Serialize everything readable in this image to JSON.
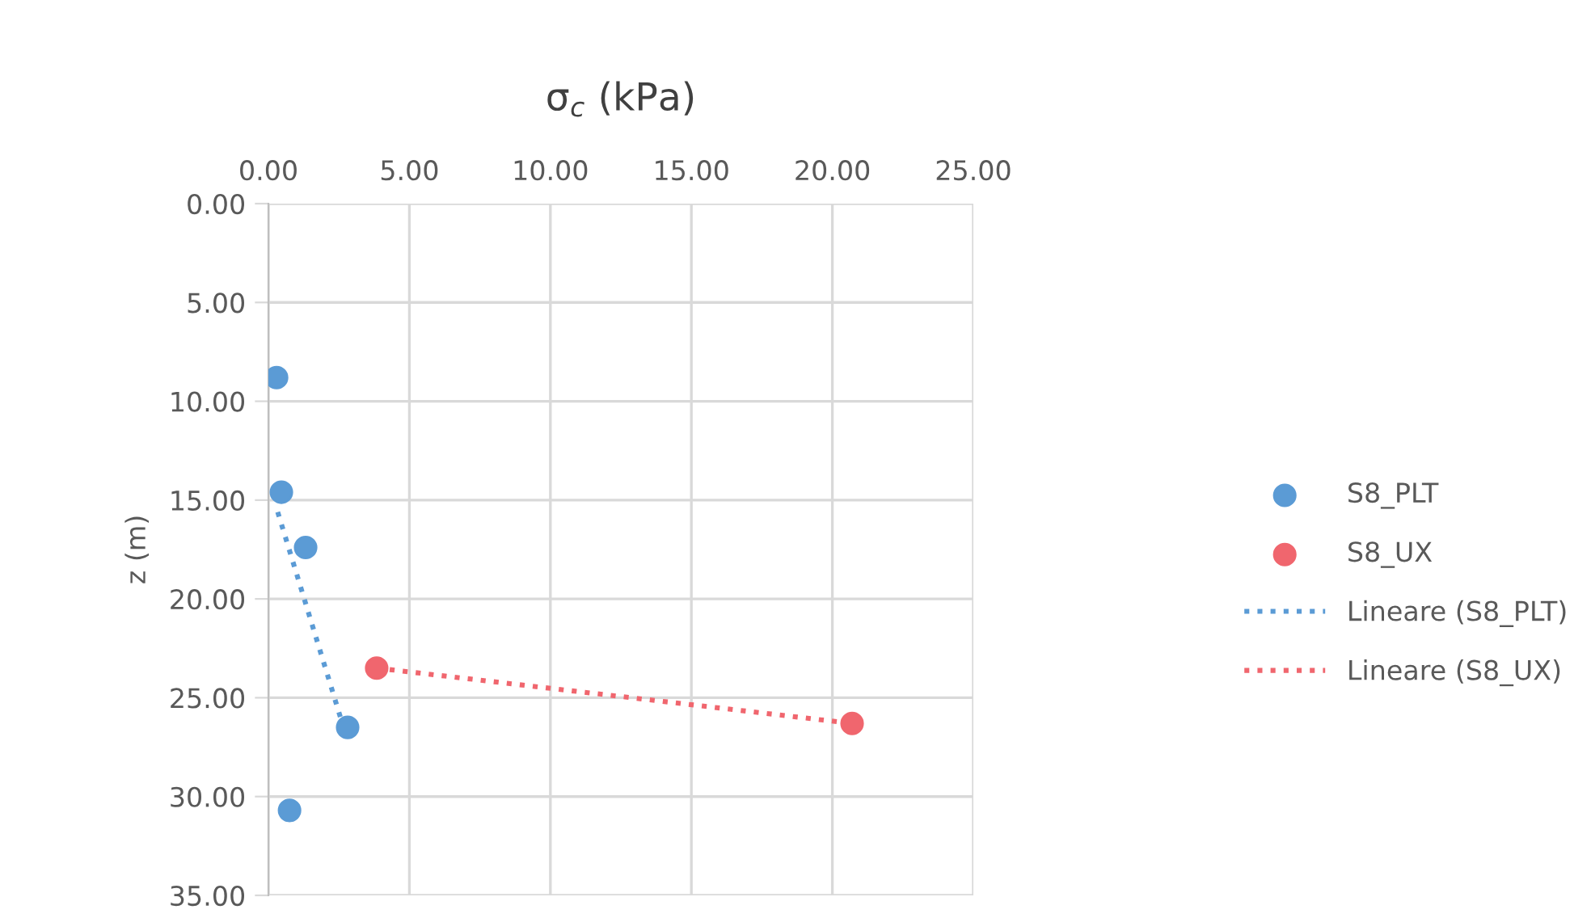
{
  "chart_data": {
    "type": "scatter",
    "xlabel": "σ$_{c}$ (kPa)",
    "ylabel": "z (m)",
    "xlim": [
      0,
      25
    ],
    "xticks": [
      {
        "value": 0,
        "label": "0.00"
      },
      {
        "value": 5,
        "label": "5.00"
      },
      {
        "value": 10,
        "label": "10.00"
      },
      {
        "value": 15,
        "label": "15.00"
      },
      {
        "value": 20,
        "label": "20.00"
      },
      {
        "value": 25,
        "label": "25.00"
      }
    ],
    "ylim": [
      35,
      0
    ],
    "yticks": [
      {
        "value": 0,
        "label": "0.00"
      },
      {
        "value": 5,
        "label": "5.00"
      },
      {
        "value": 10,
        "label": "10.00"
      },
      {
        "value": 15,
        "label": "15.00"
      },
      {
        "value": 20,
        "label": "20.00"
      },
      {
        "value": 25,
        "label": "25.00"
      },
      {
        "value": 30,
        "label": "30.00"
      },
      {
        "value": 35,
        "label": "35.00"
      }
    ],
    "grid": true,
    "legend": "right",
    "marker": "circle",
    "series": [
      {
        "name": "S8_PLT",
        "color": "#5b9bd5",
        "x": [
          0.29,
          0.46,
          1.32,
          2.81,
          0.75
        ],
        "values": [
          8.8,
          14.6,
          17.4,
          26.5,
          30.7
        ]
      },
      {
        "name": "S8_UX",
        "color": "#f0666e",
        "x": [
          3.84,
          20.7
        ],
        "values": [
          23.5,
          26.3
        ]
      },
      {
        "name": "Lineare (S8_PLT)",
        "type": "line",
        "line_style": "dotted",
        "marker": "none",
        "color": "#5b9bd5",
        "x": [
          0.33,
          2.77
        ],
        "values": [
          15.6,
          27.0
        ]
      },
      {
        "name": "Lineare (S8_UX)",
        "type": "line",
        "line_style": "dotted",
        "marker": "none",
        "color": "#f0666e",
        "x": [
          3.84,
          20.7
        ],
        "values": [
          23.5,
          26.3
        ]
      }
    ]
  }
}
